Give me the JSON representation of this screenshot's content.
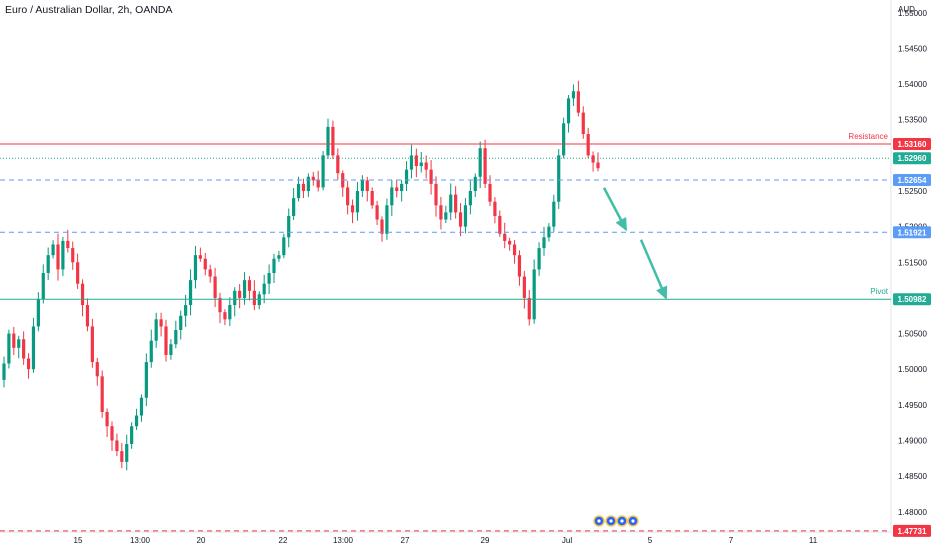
{
  "header": {
    "title": "Euro / Australian Dollar, 2h, OANDA"
  },
  "chart_data": {
    "type": "candlestick",
    "currency": "AUD",
    "ylim": [
      1.4773,
      1.5518
    ],
    "y_ticks": [
      1.55,
      1.545,
      1.54,
      1.535,
      1.53,
      1.525,
      1.52,
      1.515,
      1.51,
      1.505,
      1.5,
      1.495,
      1.49,
      1.485,
      1.48
    ],
    "x_ticks": [
      "15",
      "13:00",
      "20",
      "22",
      "13:00",
      "27",
      "29",
      "Jul",
      "5",
      "7",
      "11"
    ],
    "levels": [
      {
        "name": "Resistance",
        "value": 1.5316,
        "label": "1.53160",
        "color": "#f23645",
        "style": "solid",
        "text": "Resistance"
      },
      {
        "name": "current",
        "value": 1.5296,
        "label": "1.52960",
        "color": "#22ab94",
        "style": "dotted",
        "text": ""
      },
      {
        "name": "level1",
        "value": 1.52654,
        "label": "1.52654",
        "color": "#5b9cf6",
        "style": "dashed",
        "text": ""
      },
      {
        "name": "level2",
        "value": 1.51921,
        "label": "1.51921",
        "color": "#5b9cf6",
        "style": "dashed",
        "text": ""
      },
      {
        "name": "Pivot",
        "value": 1.50982,
        "label": "1.50982",
        "color": "#22ab94",
        "style": "solid",
        "text": "Pivot"
      },
      {
        "name": "low",
        "value": 1.47731,
        "label": "1.47731",
        "color": "#f23645",
        "style": "dashed",
        "text": ""
      }
    ],
    "arrows": [
      {
        "from": [
          1.5256,
          1
        ],
        "to": [
          1.5196,
          7
        ]
      },
      {
        "from": [
          1.5183,
          10
        ],
        "to": [
          1.51,
          20
        ]
      }
    ],
    "ohlc_walk": [
      1.4985,
      1.5008,
      1.505,
      1.503,
      1.5042,
      1.5015,
      1.5,
      1.506,
      1.5098,
      1.5135,
      1.516,
      1.5175,
      1.514,
      1.518,
      1.517,
      1.515,
      1.512,
      1.509,
      1.506,
      1.501,
      1.499,
      1.494,
      1.492,
      1.49,
      1.4885,
      1.487,
      1.4895,
      1.492,
      1.4935,
      1.496,
      1.501,
      1.504,
      1.507,
      1.506,
      1.502,
      1.5035,
      1.5055,
      1.5075,
      1.509,
      1.5125,
      1.516,
      1.5155,
      1.514,
      1.513,
      1.51,
      1.508,
      1.507,
      1.509,
      1.511,
      1.51,
      1.5125,
      1.511,
      1.509,
      1.5105,
      1.512,
      1.5135,
      1.5155,
      1.516,
      1.5185,
      1.5215,
      1.524,
      1.526,
      1.525,
      1.527,
      1.5265,
      1.5255,
      1.53,
      1.534,
      1.53,
      1.5275,
      1.5255,
      1.523,
      1.522,
      1.525,
      1.5265,
      1.525,
      1.523,
      1.521,
      1.519,
      1.523,
      1.5255,
      1.525,
      1.526,
      1.528,
      1.53,
      1.5285,
      1.529,
      1.528,
      1.526,
      1.523,
      1.521,
      1.522,
      1.5245,
      1.522,
      1.52,
      1.523,
      1.525,
      1.527,
      1.531,
      1.526,
      1.5235,
      1.5215,
      1.519,
      1.518,
      1.5175,
      1.516,
      1.513,
      1.51,
      1.507,
      1.514,
      1.517,
      1.5185,
      1.52,
      1.5235,
      1.53,
      1.5345,
      1.538,
      1.539,
      1.536,
      1.533,
      1.53,
      1.529
    ]
  },
  "markers": {
    "icons": [
      "event-flag",
      "event-flag",
      "event-flag",
      "event-flag"
    ]
  }
}
